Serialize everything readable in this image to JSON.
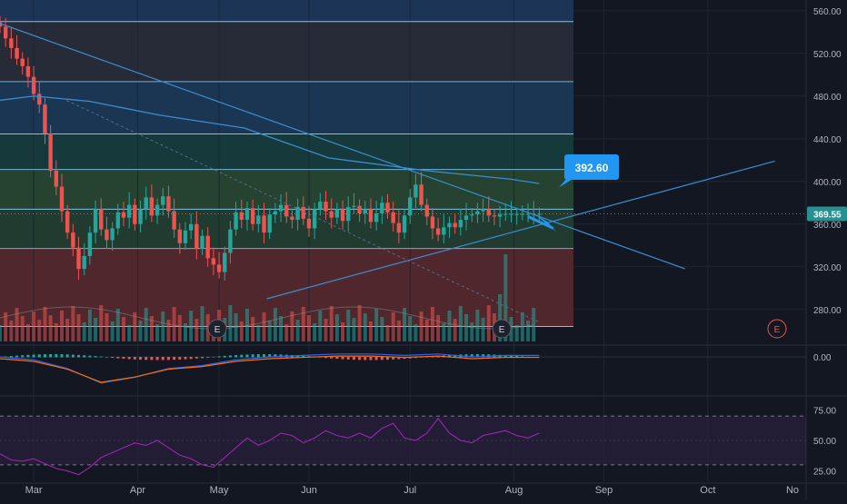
{
  "chart_data": {
    "type": "candlestick",
    "price_axis": {
      "ylim": [
        250,
        570
      ],
      "ticks": [
        "560.00",
        "520.00",
        "480.00",
        "440.00",
        "400.00",
        "360.00",
        "320.00",
        "280.00"
      ],
      "tick_values": [
        560,
        520,
        480,
        440,
        400,
        360,
        320,
        280
      ]
    },
    "macd_axis": {
      "ticks": [
        "0.00"
      ]
    },
    "rsi_axis": {
      "ticks": [
        "75.00",
        "50.00",
        "25.00"
      ],
      "tick_values": [
        75,
        50,
        25
      ],
      "ylim": [
        15,
        85
      ],
      "overbought": 70,
      "oversold": 30
    },
    "x_axis": {
      "labels": [
        "Mar",
        "Apr",
        "May",
        "Jun",
        "Jul",
        "Aug",
        "Sep",
        "Oct",
        "No"
      ],
      "label_days": [
        0,
        37,
        66,
        98,
        134,
        171,
        203,
        240,
        275
      ],
      "xlim": [
        -12,
        275
      ]
    },
    "current_price": {
      "label": "369.55",
      "value": 369.55
    },
    "annotation": {
      "label": "392.60",
      "value": 392.6
    },
    "earnings_marker": "E",
    "levels": [
      549.8,
      493.5,
      444.5,
      411.2,
      373.9,
      337.1,
      264
    ],
    "zones": [
      {
        "from": 549.8,
        "to": 570,
        "color": "#1e3a5f"
      },
      {
        "from": 493.5,
        "to": 549.8,
        "color": "#2b2f3b"
      },
      {
        "from": 444.5,
        "to": 493.5,
        "color": "#1d3c5c"
      },
      {
        "from": 411.2,
        "to": 444.5,
        "color": "#17403f"
      },
      {
        "from": 373.9,
        "to": 411.2,
        "color": "#2a4a33"
      },
      {
        "from": 337.1,
        "to": 373.9,
        "color": "#244232"
      },
      {
        "from": 264,
        "to": 337.1,
        "color": "#5a2a2e"
      }
    ],
    "downtrend_line": {
      "from": [
        -12,
        548
      ],
      "to": [
        180,
        367
      ]
    },
    "uptrend_line": {
      "from": [
        83,
        290
      ],
      "to": [
        219,
        387
      ]
    },
    "ma_points": [
      [
        -12,
        476
      ],
      [
        0,
        480
      ],
      [
        20,
        475
      ],
      [
        45,
        462
      ],
      [
        75,
        450
      ],
      [
        105,
        422
      ],
      [
        140,
        410
      ],
      [
        170,
        402
      ],
      [
        180,
        398
      ]
    ],
    "colors": {
      "up": "#26a69a",
      "down": "#ef5350",
      "ma": "#3b8ed0",
      "trend": "#3b8ed0",
      "rsi": "#9c27b0",
      "label_bg": "#2196f3",
      "price_tag_bg": "#2a8f8f"
    },
    "series": [
      {
        "name": "close",
        "x": [
          -12,
          -10,
          -8,
          -6,
          -4,
          -2,
          0,
          2,
          4,
          6,
          8,
          10,
          12,
          14,
          16,
          18,
          20,
          22,
          24,
          26,
          28,
          30,
          32,
          34,
          36,
          38,
          40,
          42,
          44,
          46,
          48,
          50,
          52,
          54,
          56,
          58,
          60,
          62,
          64,
          66,
          68,
          70,
          72,
          74,
          76,
          78,
          80,
          82,
          84,
          86,
          88,
          90,
          92,
          94,
          96,
          98,
          100,
          102,
          104,
          106,
          108,
          110,
          112,
          114,
          116,
          118,
          120,
          122,
          124,
          126,
          128,
          130,
          132,
          134,
          136,
          138,
          140,
          142,
          144,
          146,
          148,
          150,
          152,
          154,
          156,
          158,
          160,
          162,
          164,
          166,
          168,
          170,
          172,
          174,
          176,
          178,
          180
        ],
        "y": [
          545,
          534,
          525,
          515,
          508,
          498,
          482,
          472,
          445,
          410,
          395,
          372,
          352,
          338,
          318,
          330,
          352,
          374,
          355,
          345,
          356,
          371,
          366,
          378,
          360,
          374,
          385,
          368,
          378,
          386,
          372,
          355,
          342,
          354,
          360,
          337,
          349,
          328,
          322,
          315,
          333,
          355,
          371,
          364,
          375,
          360,
          368,
          352,
          369,
          372,
          378,
          367,
          364,
          376,
          365,
          356,
          374,
          381,
          372,
          366,
          374,
          363,
          376,
          377,
          370,
          374,
          362,
          370,
          380,
          371,
          361,
          352,
          368,
          385,
          397,
          378,
          367,
          356,
          350,
          357,
          361,
          357,
          364,
          368,
          369,
          372,
          374,
          368,
          367,
          369,
          369.55,
          369.55,
          369.55,
          369.55,
          369.55,
          369.55,
          369.55
        ]
      },
      {
        "name": "rsi",
        "x": [
          -12,
          -8,
          -4,
          0,
          4,
          8,
          12,
          16,
          20,
          24,
          28,
          32,
          36,
          40,
          44,
          48,
          52,
          56,
          60,
          64,
          68,
          72,
          76,
          80,
          84,
          88,
          92,
          96,
          100,
          104,
          108,
          112,
          116,
          120,
          124,
          128,
          132,
          136,
          140,
          144,
          148,
          152,
          156,
          160,
          164,
          168,
          172,
          176,
          180
        ],
        "y": [
          39,
          34,
          33,
          35,
          31,
          27,
          25,
          22,
          28,
          36,
          40,
          44,
          48,
          46,
          50,
          44,
          38,
          35,
          30,
          28,
          36,
          44,
          52,
          46,
          50,
          56,
          54,
          48,
          52,
          58,
          54,
          52,
          56,
          52,
          60,
          64,
          52,
          50,
          56,
          68,
          56,
          50,
          48,
          54,
          56,
          58,
          54,
          52,
          56
        ]
      },
      {
        "name": "macd",
        "x": [
          -12,
          0,
          12,
          24,
          36,
          48,
          60,
          72,
          84,
          96,
          108,
          120,
          132,
          144,
          156,
          168,
          180
        ],
        "y": [
          0,
          -1,
          -4,
          -9,
          -7,
          -4,
          -3,
          -1,
          0,
          0.5,
          1,
          1,
          0.5,
          1,
          0,
          0.5,
          0.5
        ]
      },
      {
        "name": "volume",
        "x": [
          -12,
          180
        ],
        "y": [
          5,
          5
        ]
      }
    ]
  }
}
